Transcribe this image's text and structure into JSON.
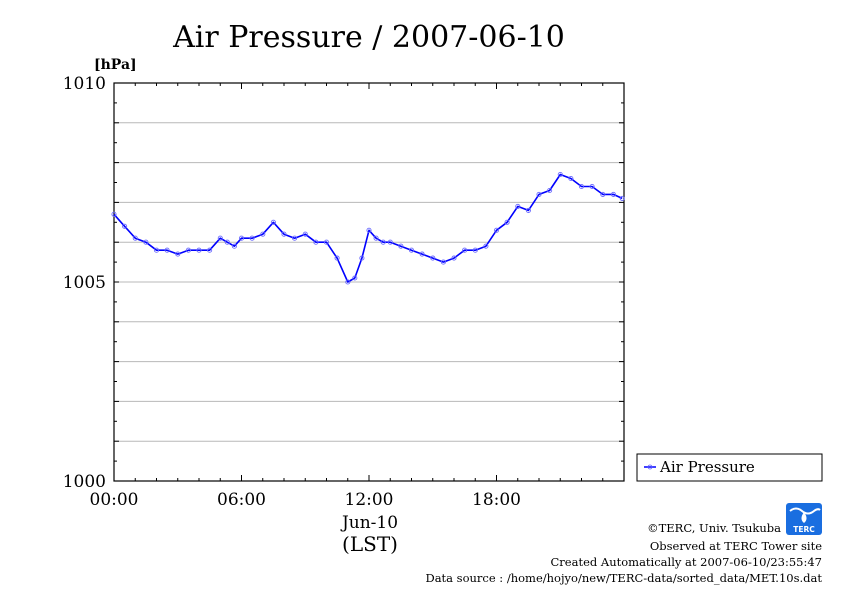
{
  "chart_data": {
    "type": "line",
    "title": "Air Pressure / 2007-06-10",
    "ylabel": "[hPa]",
    "xlabel": "(LST)",
    "date_label": "Jun-10",
    "ylim": [
      1000,
      1010
    ],
    "xlim": [
      "2007-06-10 00:00",
      "2007-06-11 00:00"
    ],
    "x_ticks": [
      "00:00",
      "06:00",
      "12:00",
      "18:00"
    ],
    "y_ticks": [
      1000,
      1005,
      1010
    ],
    "grid": true,
    "legend_position": "bottom-right, outside plot",
    "series": [
      {
        "name": "Air Pressure",
        "color": "#0000ff",
        "x": [
          "00:00",
          "00:30",
          "01:00",
          "01:30",
          "02:00",
          "02:30",
          "03:00",
          "03:30",
          "04:00",
          "04:30",
          "05:00",
          "05:20",
          "05:40",
          "06:00",
          "06:30",
          "07:00",
          "07:30",
          "08:00",
          "08:30",
          "09:00",
          "09:30",
          "10:00",
          "10:30",
          "11:00",
          "11:20",
          "11:40",
          "12:00",
          "12:20",
          "12:40",
          "13:00",
          "13:30",
          "14:00",
          "14:30",
          "15:00",
          "15:30",
          "16:00",
          "16:30",
          "17:00",
          "17:30",
          "18:00",
          "18:30",
          "19:00",
          "19:30",
          "20:00",
          "20:30",
          "21:00",
          "21:30",
          "22:00",
          "22:30",
          "23:00",
          "23:30",
          "23:55"
        ],
        "values": [
          1006.7,
          1006.4,
          1006.1,
          1006.0,
          1005.8,
          1005.8,
          1005.7,
          1005.8,
          1005.8,
          1005.8,
          1006.1,
          1006.0,
          1005.9,
          1006.1,
          1006.1,
          1006.2,
          1006.5,
          1006.2,
          1006.1,
          1006.2,
          1006.0,
          1006.0,
          1005.6,
          1005.0,
          1005.1,
          1005.6,
          1006.3,
          1006.1,
          1006.0,
          1006.0,
          1005.9,
          1005.8,
          1005.7,
          1005.6,
          1005.5,
          1005.6,
          1005.8,
          1005.8,
          1005.9,
          1006.3,
          1006.5,
          1006.9,
          1006.8,
          1007.2,
          1007.3,
          1007.7,
          1007.6,
          1007.4,
          1007.4,
          1007.2,
          1007.2,
          1007.1
        ]
      }
    ]
  },
  "credits": {
    "copyright": "©TERC, Univ. Tsukuba",
    "observed": "Observed at TERC Tower site",
    "created": "Created Automatically at 2007-06-10/23:55:47",
    "source": "Data source : /home/hojyo/new/TERC-data/sorted_data/MET.10s.dat"
  },
  "logo": {
    "text": "TERC",
    "color": "#1a6ee0"
  }
}
